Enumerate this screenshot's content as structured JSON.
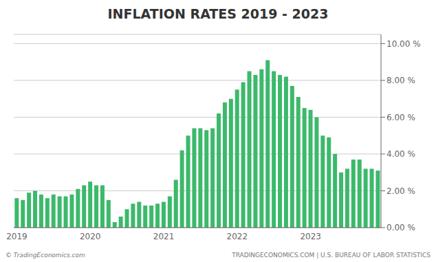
{
  "chart_data": {
    "type": "bar",
    "title": "INFLATION RATES 2019 - 2023",
    "categories": [
      "2019",
      null,
      null,
      null,
      null,
      null,
      null,
      null,
      null,
      null,
      null,
      null,
      "2020",
      null,
      null,
      null,
      null,
      null,
      null,
      null,
      null,
      null,
      null,
      null,
      "2021",
      null,
      null,
      null,
      null,
      null,
      null,
      null,
      null,
      null,
      null,
      null,
      "2022",
      null,
      null,
      null,
      null,
      null,
      null,
      null,
      null,
      null,
      null,
      null,
      "2023",
      null,
      null,
      null,
      null,
      null,
      null,
      null,
      null,
      null,
      null,
      null
    ],
    "values": [
      1.6,
      1.5,
      1.9,
      2.0,
      1.8,
      1.6,
      1.8,
      1.7,
      1.7,
      1.8,
      2.1,
      2.3,
      2.5,
      2.3,
      2.3,
      1.5,
      0.3,
      0.6,
      1.0,
      1.3,
      1.4,
      1.2,
      1.2,
      1.3,
      1.4,
      1.7,
      2.6,
      4.2,
      5.0,
      5.4,
      5.4,
      5.3,
      5.4,
      6.2,
      6.8,
      7.0,
      7.5,
      7.9,
      8.5,
      8.3,
      8.6,
      9.1,
      8.5,
      8.3,
      8.2,
      7.7,
      7.1,
      6.5,
      6.4,
      6.0,
      5.0,
      4.9,
      4.0,
      3.0,
      3.2,
      3.7,
      3.7,
      3.2,
      3.2,
      3.1
    ],
    "color": "#3cb96b",
    "ylim": [
      0,
      10.5
    ],
    "yticks": [
      {
        "value": 0,
        "label": "0.00 %"
      },
      {
        "value": 2,
        "label": "2.00 %"
      },
      {
        "value": 4,
        "label": "4.00 %"
      },
      {
        "value": 6,
        "label": "6.00 %"
      },
      {
        "value": 8,
        "label": "8.00 %"
      },
      {
        "value": 10,
        "label": "10.00 %"
      }
    ],
    "grid": true,
    "annotations": [
      "© TradingEconomics.com",
      "TRADINGECONOMICS.COM | U.S. BUREAU OF LABOR STATISTICS"
    ]
  }
}
